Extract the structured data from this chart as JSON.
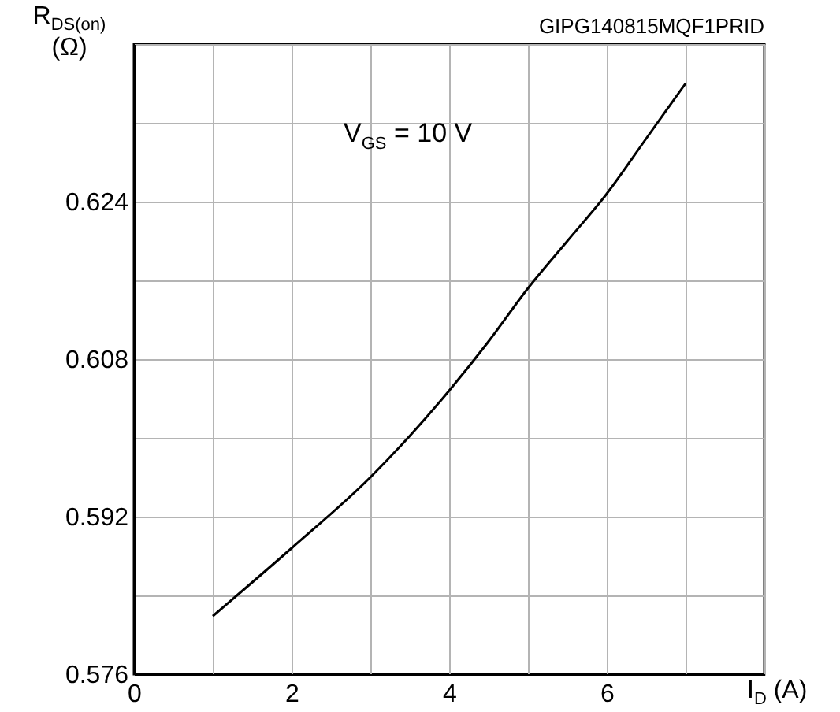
{
  "chart_data": {
    "type": "line",
    "xlabel": "I$_{D}$ (A)",
    "ylabel": "R$_{DS(on)}$ (Ω)",
    "annotations": [
      "V$_{GS}$ = 10 V",
      "GIPG140815MQF1PRID"
    ],
    "x": [
      1,
      2,
      3,
      3.5,
      4,
      4.5,
      5,
      5.5,
      6,
      6.5,
      7
    ],
    "series": [
      {
        "color": "#000000",
        "values": [
          0.5819,
          0.5888,
          0.596,
          0.6002,
          0.6048,
          0.6098,
          0.6152,
          0.62,
          0.6248,
          0.6304,
          0.636
        ]
      }
    ],
    "xlim": [
      0,
      8
    ],
    "xticks": [
      0,
      {
        "value": 1,
        "label": null
      },
      2,
      {
        "value": 3,
        "label": null
      },
      4,
      {
        "value": 5,
        "label": null
      },
      6,
      {
        "value": 7,
        "label": null
      },
      {
        "value": 8,
        "label": null
      }
    ],
    "ylim": [
      0.576,
      0.64
    ],
    "yticks": [
      0.576,
      {
        "value": 0.584,
        "label": null
      },
      0.592,
      {
        "value": 0.6,
        "label": null
      },
      0.608,
      {
        "value": 0.616,
        "label": null
      },
      0.624,
      {
        "value": 0.632,
        "label": null
      },
      {
        "value": 0.64,
        "label": null
      }
    ],
    "grid": true,
    "line_style": "solid",
    "marker": "none"
  }
}
